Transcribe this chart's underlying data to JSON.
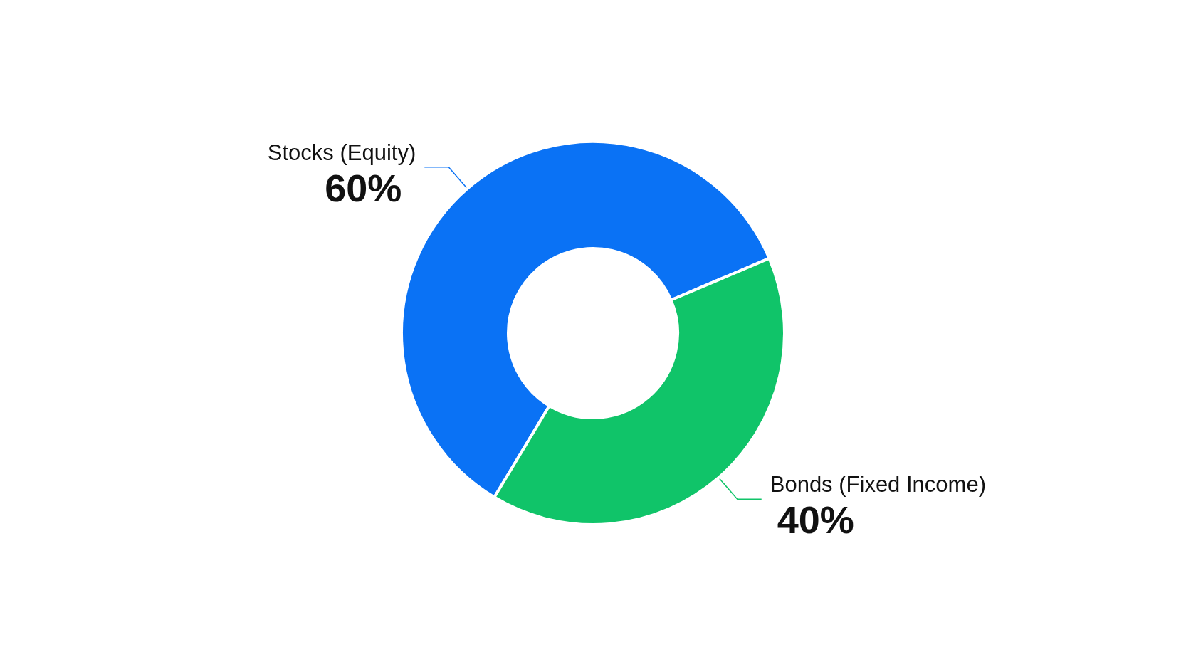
{
  "chart_data": {
    "type": "donut",
    "categories": [
      "Stocks (Equity)",
      "Bonds (Fixed Income)"
    ],
    "values": [
      60,
      40
    ],
    "value_labels": [
      "60%",
      "40%"
    ],
    "colors": [
      "#0a72f5",
      "#10c469"
    ]
  }
}
